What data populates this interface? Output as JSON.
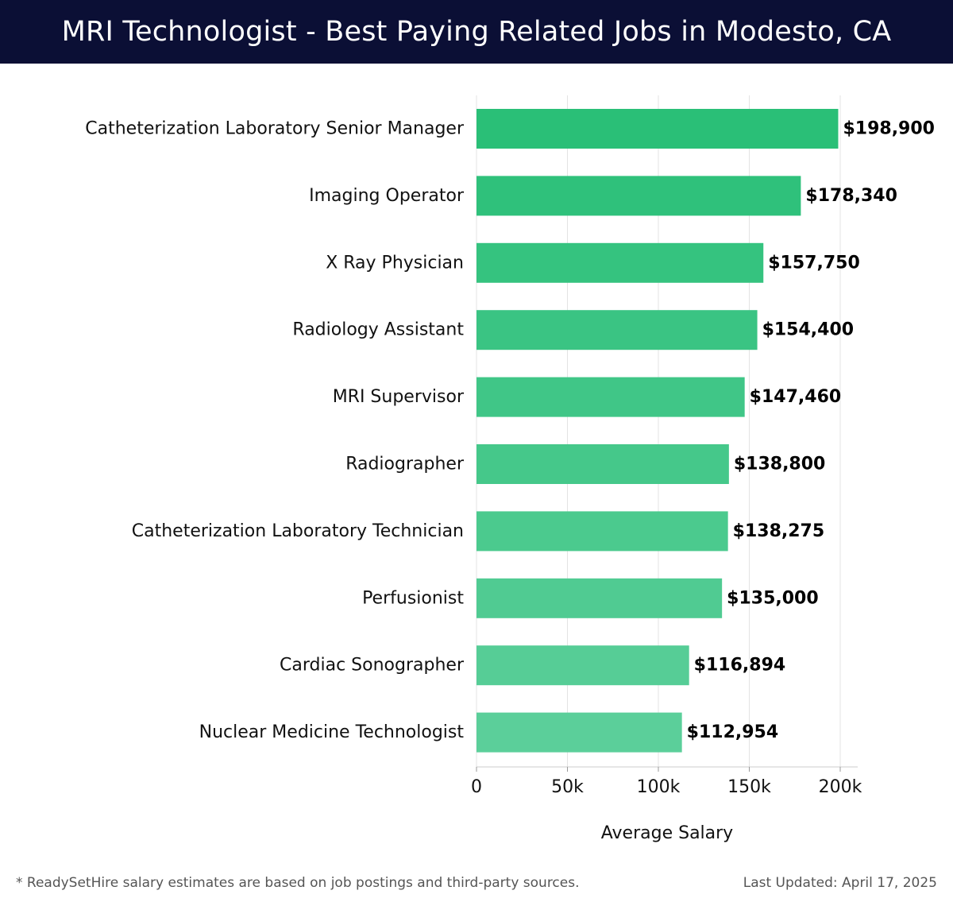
{
  "header": {
    "title": "MRI Technologist - Best Paying Related Jobs in Modesto, CA"
  },
  "chart_data": {
    "type": "bar",
    "orientation": "horizontal",
    "title": "MRI Technologist - Best Paying Related Jobs in Modesto, CA",
    "xlabel": "Average Salary",
    "ylabel": "",
    "xlim": [
      0,
      200000
    ],
    "x_ticks": [
      {
        "value": 0,
        "label": "0"
      },
      {
        "value": 50000,
        "label": "50k"
      },
      {
        "value": 100000,
        "label": "100k"
      },
      {
        "value": 150000,
        "label": "150k"
      },
      {
        "value": 200000,
        "label": "200k"
      }
    ],
    "grid": true,
    "categories": [
      "Catheterization Laboratory Senior Manager",
      "Imaging Operator",
      "X Ray Physician",
      "Radiology Assistant",
      "MRI Supervisor",
      "Radiographer",
      "Catheterization Laboratory Technician",
      "Perfusionist",
      "Cardiac Sonographer",
      "Nuclear Medicine Technologist"
    ],
    "values": [
      198900,
      178340,
      157750,
      154400,
      147460,
      138800,
      138275,
      135000,
      116894,
      112954
    ],
    "value_labels": [
      "$198,900",
      "$178,340",
      "$157,750",
      "$154,400",
      "$147,460",
      "$138,800",
      "$138,275",
      "$135,000",
      "$116,894",
      "$112,954"
    ],
    "colors": {
      "bar_top": "#2abf77",
      "bar_bottom": "#5bcf9a"
    }
  },
  "footer": {
    "note": "* ReadySetHire salary estimates are based on job postings and third-party sources.",
    "updated": "Last Updated: April 17, 2025"
  }
}
